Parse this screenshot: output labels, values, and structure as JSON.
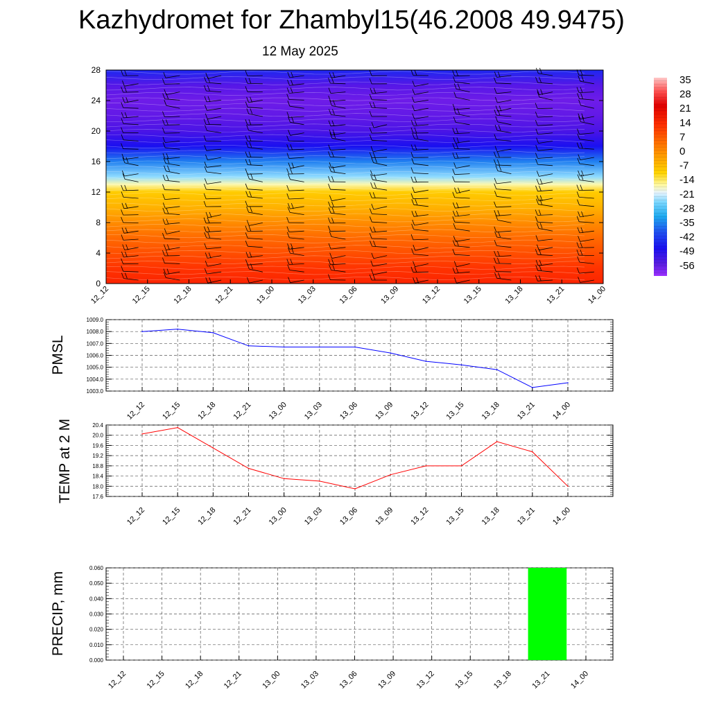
{
  "title": "Kazhydromet for Zhambyl15(46.2008 49.9475)",
  "subtitle": "12 May 2025",
  "time_labels": [
    "12_12",
    "12_15",
    "12_18",
    "12_21",
    "13_00",
    "13_03",
    "13_06",
    "13_09",
    "13_12",
    "13_15",
    "13_18",
    "13_21",
    "14_00"
  ],
  "colorbar": {
    "labels": [
      "35",
      "28",
      "21",
      "14",
      "7",
      "0",
      "-7",
      "-14",
      "-21",
      "-28",
      "-35",
      "-42",
      "-49",
      "-56"
    ]
  },
  "chart_data": [
    {
      "type": "heatmap",
      "title": "",
      "x": [
        "12_12",
        "12_15",
        "12_18",
        "12_21",
        "13_00",
        "13_03",
        "13_06",
        "13_09",
        "13_12",
        "13_15",
        "13_18",
        "13_21",
        "14_00"
      ],
      "yticks": [
        "0",
        "4",
        "8",
        "12",
        "16",
        "20",
        "24",
        "28"
      ],
      "ylim": [
        0,
        28
      ],
      "color_range": [
        -56,
        35
      ],
      "temperature_profile_by_level": {
        "levels": [
          0,
          2,
          4,
          6,
          8,
          10,
          12,
          13,
          14,
          16,
          18,
          20,
          22,
          24,
          26,
          28
        ],
        "values": [
          22,
          20,
          17,
          14,
          10,
          5,
          1,
          -8,
          -20,
          -35,
          -48,
          -52,
          -54,
          -55,
          -53,
          -45
        ]
      },
      "overlay": "wind barbs"
    },
    {
      "type": "line",
      "ylabel": "PMSL",
      "x": [
        "12_12",
        "12_15",
        "12_18",
        "12_21",
        "13_00",
        "13_03",
        "13_06",
        "13_09",
        "13_12",
        "13_15",
        "13_18",
        "13_21",
        "14_00"
      ],
      "yticks": [
        "1003.0",
        "1004.0",
        "1005.0",
        "1006.0",
        "1007.0",
        "1008.0",
        "1009.0"
      ],
      "ylim": [
        1003.0,
        1009.0
      ],
      "series": [
        {
          "values": [
            1008.0,
            1008.2,
            1007.9,
            1006.8,
            1006.7,
            1006.7,
            1006.7,
            1006.2,
            1005.5,
            1005.2,
            1004.8,
            1003.3,
            1003.7
          ],
          "color": "#0000ff"
        }
      ],
      "grid": true
    },
    {
      "type": "line",
      "ylabel": "TEMP at 2 M",
      "x": [
        "12_12",
        "12_15",
        "12_18",
        "12_21",
        "13_00",
        "13_03",
        "13_06",
        "13_09",
        "13_12",
        "13_15",
        "13_18",
        "13_21",
        "14_00"
      ],
      "yticks": [
        "17.6",
        "18.0",
        "18.4",
        "18.8",
        "19.2",
        "19.6",
        "20.0",
        "20.4"
      ],
      "ylim": [
        17.6,
        20.4
      ],
      "series": [
        {
          "values": [
            20.05,
            20.3,
            19.5,
            18.7,
            18.3,
            18.2,
            17.9,
            18.45,
            18.8,
            18.8,
            19.75,
            19.35,
            18.0
          ],
          "color": "#ff0000"
        }
      ],
      "grid": true
    },
    {
      "type": "bar",
      "ylabel": "PRECIP, mm",
      "categories": [
        "12_12",
        "12_15",
        "12_18",
        "12_21",
        "13_00",
        "13_03",
        "13_06",
        "13_09",
        "13_12",
        "13_15",
        "13_18",
        "13_21",
        "14_00"
      ],
      "yticks": [
        "0.000",
        "0.010",
        "0.020",
        "0.030",
        "0.040",
        "0.050",
        "0.060"
      ],
      "ylim": [
        0,
        0.06
      ],
      "values": [
        0,
        0,
        0,
        0,
        0,
        0,
        0,
        0,
        0,
        0,
        0,
        0.06,
        0
      ],
      "color": "#00ff00",
      "grid": true
    }
  ]
}
